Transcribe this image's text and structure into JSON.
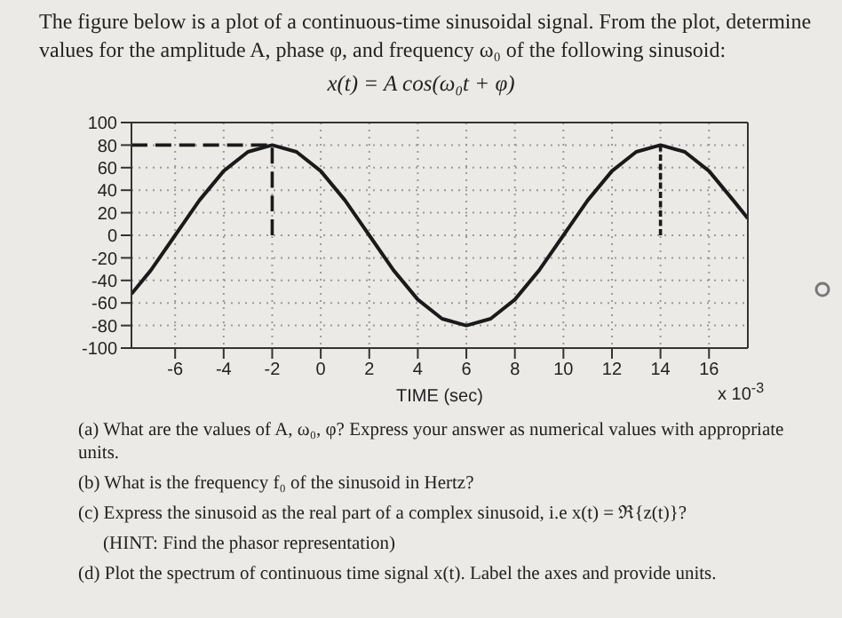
{
  "chart_data": {
    "type": "line",
    "title": "The figure below is a plot of a continuous-time sinusoidal signal. From the plot, determine values for the amplitude A, phase φ, and frequency ω₀ of the following sinusoid:",
    "subtitle": "x(t) = A cos(ω₀t + φ)",
    "xlabel": "TIME   (sec)",
    "xlim": [
      -7.8,
      17.6
    ],
    "xticks": [
      -6,
      -4,
      -2,
      0,
      2,
      4,
      6,
      8,
      10,
      12,
      14,
      16
    ],
    "ylim": [
      -100,
      100
    ],
    "yticks": [
      -100,
      -80,
      -60,
      -40,
      -20,
      0,
      20,
      40,
      60,
      80,
      100
    ],
    "grid": true,
    "marker": "none",
    "series": [
      {
        "color": "#1a1a1a",
        "line_style": "solid",
        "x": [
          -7.8,
          -7,
          -6,
          -5,
          -4,
          -3,
          -2,
          -1,
          0,
          1,
          2,
          3,
          4,
          5,
          6,
          7,
          8,
          9,
          10,
          11,
          12,
          13,
          14,
          15,
          16,
          17,
          17.6
        ],
        "values": [
          -52,
          -31,
          0,
          31,
          57,
          74,
          80,
          74,
          57,
          31,
          0,
          -31,
          -57,
          -74,
          -80,
          -74,
          -57,
          -31,
          0,
          31,
          57,
          74,
          80,
          74,
          57,
          31,
          15
        ]
      },
      {
        "color": "#1a1a1a",
        "line_style": "dashed",
        "x": [
          -7.8,
          -2,
          -2
        ],
        "values": [
          80,
          80,
          0
        ]
      },
      {
        "color": "#1a1a1a",
        "line_style": "dashed",
        "x": [
          14,
          14
        ],
        "values": [
          80,
          0
        ]
      }
    ],
    "annotations": [
      "x 10$^{-3}$",
      "(a) What are the values of A, ω₀, φ? Express your answer as numerical values with appropriate units.",
      "(b) What is the frequency f₀ of the sinusoid in Hertz?",
      "(c) Express the sinusoid as the real part of a complex sinusoid, i.e x(t) = ℜ{z(t)}?",
      "(HINT: Find the phasor representation)",
      "(d) Plot the spectrum of continuous time signal x(t). Label the axes and provide units."
    ]
  }
}
